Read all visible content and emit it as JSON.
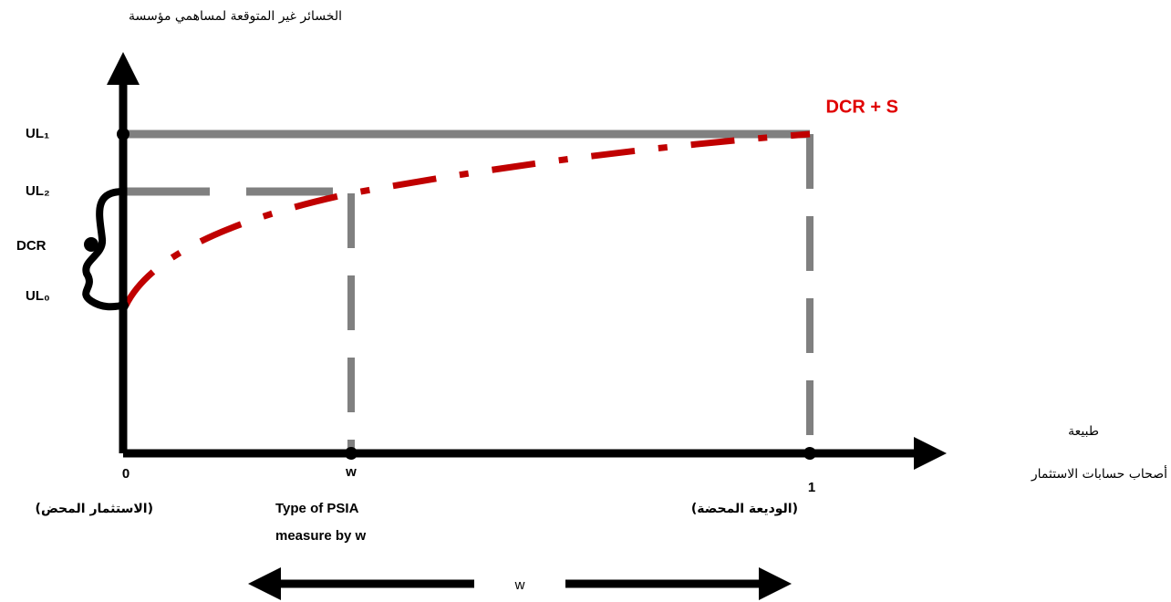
{
  "y_axis_title": "الخسائر غير المتوقعة لمساهمي مؤسسة",
  "curve_label": "DCR + S",
  "y_labels": [
    "UL₁",
    "UL₂",
    "DCR",
    "UL₀"
  ],
  "x_axis_title": [
    "طبيعة",
    "أصحاب حسابات الاستثمار"
  ],
  "x_points": [
    "0",
    "w",
    "1"
  ],
  "x_point_notes": [
    "(الاستثمار المحض)",
    "Type of PSIA",
    "measure by w",
    "(الوديعة المحضة)"
  ],
  "range_label": "w"
}
